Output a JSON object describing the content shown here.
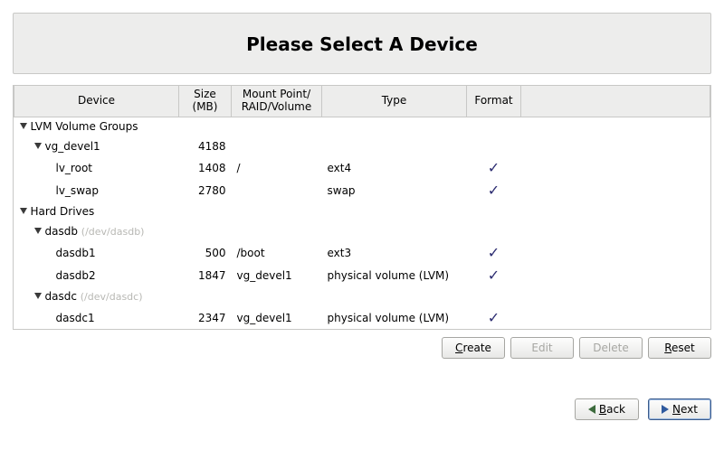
{
  "header": {
    "title": "Please Select A Device"
  },
  "columns": {
    "device": "Device",
    "size": "Size (MB)",
    "mount": "Mount Point/ RAID/Volume",
    "type": "Type",
    "format": "Format"
  },
  "rows": [
    {
      "kind": "group",
      "level": 0,
      "expander": true,
      "label": "LVM Volume Groups"
    },
    {
      "kind": "group",
      "level": 1,
      "expander": true,
      "label": "vg_devel1",
      "size": "4188"
    },
    {
      "kind": "leaf",
      "level": 2,
      "label": "lv_root",
      "size": "1408",
      "mount": "/",
      "type": "ext4",
      "format": true
    },
    {
      "kind": "leaf",
      "level": 2,
      "label": "lv_swap",
      "size": "2780",
      "mount": "",
      "type": "swap",
      "format": true
    },
    {
      "kind": "group",
      "level": 0,
      "expander": true,
      "label": "Hard Drives"
    },
    {
      "kind": "devgroup",
      "level": 1,
      "expander": true,
      "label": "dasdb",
      "path": "(/dev/dasdb)"
    },
    {
      "kind": "leaf",
      "level": 2,
      "label": "dasdb1",
      "size": "500",
      "mount": "/boot",
      "type": "ext3",
      "format": true
    },
    {
      "kind": "leaf",
      "level": 2,
      "label": "dasdb2",
      "size": "1847",
      "mount": "vg_devel1",
      "type": "physical volume (LVM)",
      "format": true
    },
    {
      "kind": "devgroup",
      "level": 1,
      "expander": true,
      "label": "dasdc",
      "path": "(/dev/dasdc)"
    },
    {
      "kind": "leaf",
      "level": 2,
      "label": "dasdc1",
      "size": "2347",
      "mount": "vg_devel1",
      "type": "physical volume (LVM)",
      "format": true
    }
  ],
  "buttons": {
    "create": "Create",
    "edit": "Edit",
    "delete": "Delete",
    "reset": "Reset",
    "back": "Back",
    "next": "Next"
  }
}
